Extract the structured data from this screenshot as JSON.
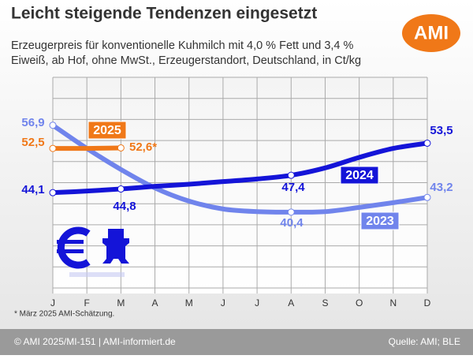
{
  "chart_data": {
    "type": "line",
    "title": "Leicht steigende Tendenzen eingesetzt",
    "subtitle": [
      "Erzeugerpreis für konventionelle Kuhmilch mit 4,0 % Fett und 3,4 %",
      "Eiweiß, ab Hof, ohne MwSt., Erzeugerstandort, Deutschland, in Ct/kg"
    ],
    "logo": "AMI",
    "categories": [
      "J",
      "F",
      "M",
      "A",
      "M",
      "J",
      "J",
      "A",
      "S",
      "O",
      "N",
      "D"
    ],
    "series": [
      {
        "name": "2023",
        "color": "#7084ec",
        "values": [
          56.9,
          52.5,
          48.5,
          45.0,
          42.5,
          41.0,
          40.5,
          40.4,
          40.5,
          41.3,
          42.2,
          43.2
        ],
        "value_labels": [
          "56,9",
          null,
          null,
          null,
          null,
          null,
          null,
          "40,4",
          null,
          null,
          null,
          "43,2"
        ]
      },
      {
        "name": "2024",
        "color": "#1414d8",
        "values": [
          44.1,
          44.4,
          44.8,
          45.3,
          45.7,
          46.2,
          46.7,
          47.4,
          48.8,
          50.8,
          52.5,
          53.5
        ],
        "value_labels": [
          "44,1",
          null,
          "44,8",
          null,
          null,
          null,
          null,
          "47,4",
          null,
          null,
          null,
          "53,5"
        ]
      },
      {
        "name": "2025",
        "color": "#f07818",
        "values": [
          52.5,
          52.5,
          52.6,
          null,
          null,
          null,
          null,
          null,
          null,
          null,
          null,
          null
        ],
        "value_labels": [
          "52,5",
          null,
          "52,6*",
          null,
          null,
          null,
          null,
          null,
          null,
          null,
          null,
          null
        ]
      }
    ],
    "ylim": [
      26,
      66
    ],
    "yticks": [
      26,
      30,
      34,
      38,
      42,
      46,
      50,
      54,
      58,
      62,
      66
    ],
    "grid": true,
    "footnote": "* März 2025 AMI-Schätzung.",
    "footer_left": "© AMI 2025/MI-151 | AMI-informiert.de",
    "footer_right": "Quelle: AMI; BLE"
  }
}
